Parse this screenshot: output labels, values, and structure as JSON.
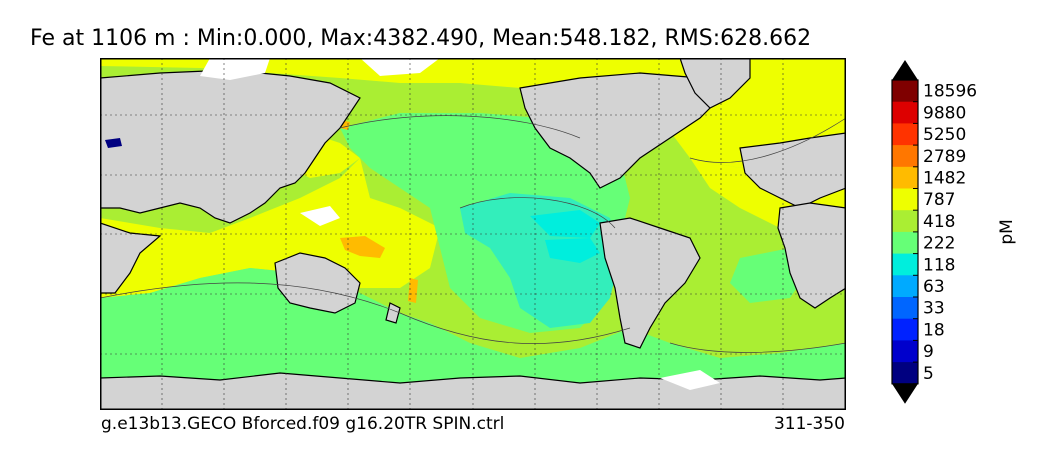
{
  "title": "Fe at 1106 m : Min:0.000, Max:4382.490, Mean:548.182, RMS:628.662",
  "footer": {
    "run_name": "g.e13b13.GECO Bforced.f09 g16.20TR SPIN.ctrl",
    "years": "311-350"
  },
  "colorbar": {
    "unit": "pM",
    "tick_labels": [
      "18596",
      "9880",
      "5250",
      "2789",
      "1482",
      "787",
      "418",
      "222",
      "118",
      "63",
      "33",
      "18",
      "9",
      "5"
    ],
    "colors_top_to_bottom": [
      "#7f0000",
      "#dd0000",
      "#ff3300",
      "#ff7700",
      "#ffbb00",
      "#eeff00",
      "#aaee33",
      "#66ff77",
      "#00eedd",
      "#00aaff",
      "#0066ff",
      "#0022ff",
      "#0000cc",
      "#000080"
    ],
    "arrow_color": "#000000"
  },
  "map_colors": {
    "land": "#d3d3d3",
    "missing": "#ffffff",
    "level_787": "#eeff00",
    "level_418": "#aaee33",
    "level_222": "#66ff77",
    "level_118": "#33eebb",
    "level_63": "#00eedd",
    "level_1482": "#ffbb00",
    "level_5": "#000080"
  }
}
